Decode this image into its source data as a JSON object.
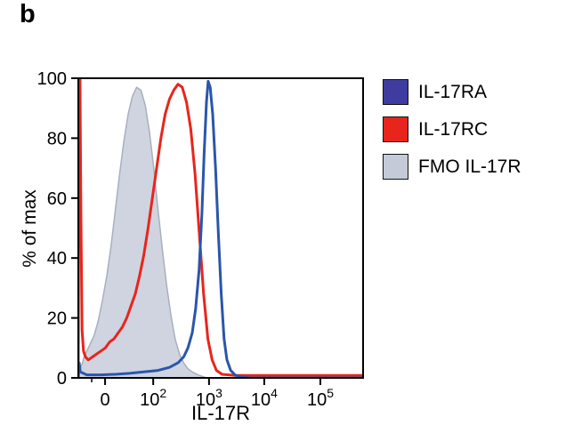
{
  "panel_label": "b",
  "chart_data": {
    "type": "area",
    "title": "",
    "xlabel": "IL-17R",
    "ylabel": "% of max",
    "ylim": [
      0,
      100
    ],
    "y_ticks": [
      0,
      20,
      40,
      60,
      80,
      100
    ],
    "x_scale": "biexponential-log",
    "x_ticks": [
      {
        "pos": 0.094,
        "label": "0",
        "exp": ""
      },
      {
        "pos": 0.263,
        "label": "10",
        "exp": "2"
      },
      {
        "pos": 0.459,
        "label": "10",
        "exp": "3"
      },
      {
        "pos": 0.653,
        "label": "10",
        "exp": "4"
      },
      {
        "pos": 0.85,
        "label": "10",
        "exp": "5"
      }
    ],
    "x_minor_ticks": [
      0.047
    ],
    "frame_color": "#000000",
    "series": [
      {
        "name": "FMO IL-17R",
        "style": "filled",
        "fill": "#cfd4e0",
        "stroke": "#a9afbd",
        "stroke_width": 1.5,
        "points": [
          [
            0.0,
            0
          ],
          [
            0.005,
            2
          ],
          [
            0.01,
            4
          ],
          [
            0.015,
            5
          ],
          [
            0.02,
            7
          ],
          [
            0.03,
            9
          ],
          [
            0.04,
            11
          ],
          [
            0.055,
            14
          ],
          [
            0.07,
            19
          ],
          [
            0.085,
            26
          ],
          [
            0.1,
            34
          ],
          [
            0.115,
            44
          ],
          [
            0.13,
            56
          ],
          [
            0.145,
            68
          ],
          [
            0.16,
            79
          ],
          [
            0.175,
            88
          ],
          [
            0.19,
            94
          ],
          [
            0.205,
            97
          ],
          [
            0.22,
            96
          ],
          [
            0.235,
            91
          ],
          [
            0.25,
            82
          ],
          [
            0.265,
            70
          ],
          [
            0.28,
            56
          ],
          [
            0.295,
            43
          ],
          [
            0.31,
            31
          ],
          [
            0.325,
            21
          ],
          [
            0.34,
            13
          ],
          [
            0.355,
            8
          ],
          [
            0.37,
            5
          ],
          [
            0.385,
            3
          ],
          [
            0.4,
            2
          ],
          [
            0.42,
            1
          ],
          [
            0.45,
            0
          ]
        ]
      },
      {
        "name": "IL-17RC",
        "style": "line",
        "fill": "none",
        "stroke": "#e8251c",
        "stroke_width": 3,
        "points": [
          [
            0.0,
            0
          ],
          [
            0.002,
            100
          ],
          [
            0.006,
            100
          ],
          [
            0.009,
            55
          ],
          [
            0.013,
            16
          ],
          [
            0.018,
            9
          ],
          [
            0.025,
            7
          ],
          [
            0.035,
            6
          ],
          [
            0.05,
            7
          ],
          [
            0.065,
            8
          ],
          [
            0.08,
            9
          ],
          [
            0.095,
            10
          ],
          [
            0.11,
            12
          ],
          [
            0.125,
            13
          ],
          [
            0.14,
            15
          ],
          [
            0.155,
            17
          ],
          [
            0.17,
            20
          ],
          [
            0.185,
            24
          ],
          [
            0.2,
            28
          ],
          [
            0.215,
            34
          ],
          [
            0.23,
            41
          ],
          [
            0.245,
            50
          ],
          [
            0.26,
            60
          ],
          [
            0.275,
            70
          ],
          [
            0.29,
            80
          ],
          [
            0.305,
            88
          ],
          [
            0.32,
            93
          ],
          [
            0.335,
            96
          ],
          [
            0.35,
            98
          ],
          [
            0.365,
            97
          ],
          [
            0.38,
            92
          ],
          [
            0.395,
            83
          ],
          [
            0.41,
            68
          ],
          [
            0.425,
            48
          ],
          [
            0.44,
            28
          ],
          [
            0.455,
            13
          ],
          [
            0.47,
            6
          ],
          [
            0.485,
            2.5
          ],
          [
            0.505,
            1.2
          ],
          [
            0.55,
            0.8
          ],
          [
            0.65,
            0.8
          ],
          [
            0.8,
            0.8
          ],
          [
            1.0,
            0.8
          ]
        ]
      },
      {
        "name": "IL-17RA",
        "style": "line",
        "fill": "none",
        "stroke": "#2a56ab",
        "stroke_width": 3,
        "points": [
          [
            0.0,
            0
          ],
          [
            0.003,
            5
          ],
          [
            0.007,
            2
          ],
          [
            0.03,
            1
          ],
          [
            0.08,
            1
          ],
          [
            0.13,
            1.2
          ],
          [
            0.18,
            1.5
          ],
          [
            0.23,
            2
          ],
          [
            0.28,
            2.5
          ],
          [
            0.32,
            3.5
          ],
          [
            0.35,
            5
          ],
          [
            0.37,
            7
          ],
          [
            0.385,
            10
          ],
          [
            0.4,
            15
          ],
          [
            0.412,
            23
          ],
          [
            0.424,
            36
          ],
          [
            0.434,
            55
          ],
          [
            0.442,
            75
          ],
          [
            0.45,
            92
          ],
          [
            0.456,
            99
          ],
          [
            0.463,
            97
          ],
          [
            0.472,
            88
          ],
          [
            0.482,
            70
          ],
          [
            0.492,
            48
          ],
          [
            0.502,
            28
          ],
          [
            0.512,
            13
          ],
          [
            0.522,
            6
          ],
          [
            0.535,
            2.5
          ],
          [
            0.55,
            1
          ],
          [
            0.57,
            0.3
          ],
          [
            0.6,
            0
          ],
          [
            0.8,
            0
          ],
          [
            1.0,
            0
          ]
        ]
      }
    ],
    "legend": [
      {
        "label": "IL-17RA",
        "color": "#3e3c9f"
      },
      {
        "label": "IL-17RC",
        "color": "#e8251c"
      },
      {
        "label": "FMO IL-17R",
        "color": "#c4cad8"
      }
    ]
  }
}
